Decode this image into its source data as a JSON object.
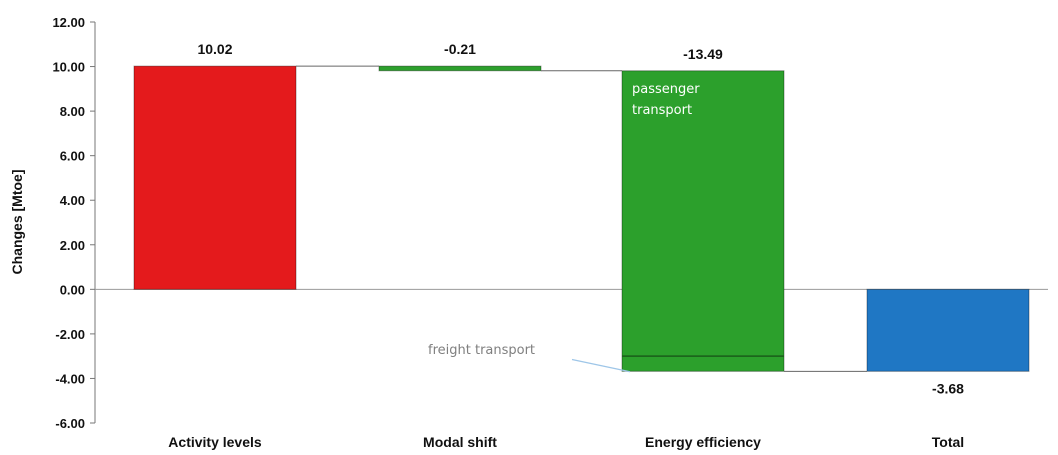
{
  "chart_data": {
    "type": "bar",
    "subtype": "waterfall",
    "ylabel": "Changes [Mtoe]",
    "ylim": [
      -6,
      12
    ],
    "yticks": [
      -6,
      -4,
      -2,
      0,
      2,
      4,
      6,
      8,
      10,
      12
    ],
    "ytick_labels": [
      "-6.00",
      "-4.00",
      "-2.00",
      "0.00",
      "2.00",
      "4.00",
      "6.00",
      "8.00",
      "10.00",
      "12.00"
    ],
    "categories": [
      "Activity levels",
      "Modal shift",
      "Energy efficiency",
      "Total"
    ],
    "values": [
      10.02,
      -0.21,
      -13.49,
      -3.68
    ],
    "value_labels": [
      "10.02",
      "-0.21",
      "-13.49",
      "-3.68"
    ],
    "colors": [
      "#e41a1c",
      "#2ca02c",
      "#2ca02c",
      "#1f77c4"
    ],
    "segment_divider": -3.0,
    "annotations": [
      {
        "text_lines": [
          "passenger",
          "transport"
        ],
        "category": "Energy efficiency",
        "color": "#ffffff"
      },
      {
        "text": "freight transport",
        "category": "Energy efficiency",
        "color": "#7f7f7f",
        "leader_color": "#9ec6e8"
      }
    ],
    "grid": false
  }
}
